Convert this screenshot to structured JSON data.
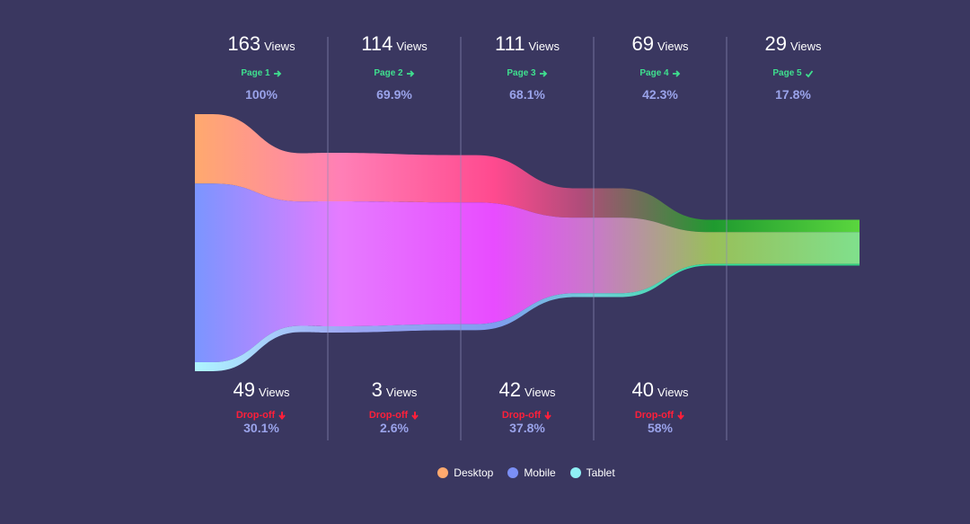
{
  "views_unit": "Views",
  "chart_data": {
    "type": "funnel",
    "stages": [
      {
        "page": "Page 1",
        "views": 163,
        "percent": "100%",
        "dropoff_views": 49,
        "dropoff_percent": "30.1%",
        "dropoff_label": "Drop-off",
        "final": false
      },
      {
        "page": "Page 2",
        "views": 114,
        "percent": "69.9%",
        "dropoff_views": 3,
        "dropoff_percent": "2.6%",
        "dropoff_label": "Drop-off",
        "final": false
      },
      {
        "page": "Page 3",
        "views": 111,
        "percent": "68.1%",
        "dropoff_views": 42,
        "dropoff_percent": "37.8%",
        "dropoff_label": "Drop-off",
        "final": false
      },
      {
        "page": "Page 4",
        "views": 69,
        "percent": "42.3%",
        "dropoff_views": 40,
        "dropoff_percent": "58%",
        "dropoff_label": "Drop-off",
        "final": false
      },
      {
        "page": "Page 5",
        "views": 29,
        "percent": "17.8%",
        "final": true
      }
    ],
    "series": [
      {
        "name": "Desktop",
        "color": "#ffa96e"
      },
      {
        "name": "Mobile",
        "color": "#7b8ff5"
      },
      {
        "name": "Tablet",
        "color": "#8ff0f5"
      }
    ],
    "legend_position": "bottom"
  }
}
